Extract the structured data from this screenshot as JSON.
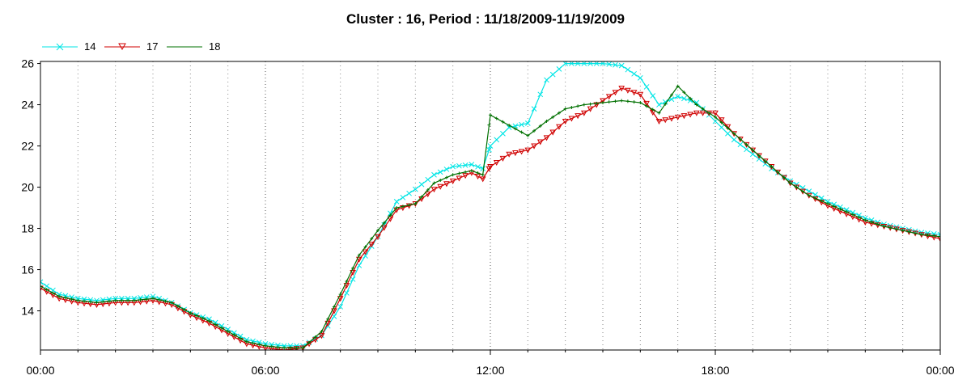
{
  "chart_data": {
    "type": "line",
    "title": "Cluster : 16, Period : 11/18/2009-11/19/2009",
    "xlabel": "",
    "ylabel": "",
    "x_tick_labels": [
      "00:00",
      "06:00",
      "12:00",
      "18:00",
      "00:00"
    ],
    "y_ticks": [
      14,
      16,
      18,
      20,
      22,
      24,
      26
    ],
    "ylim": [
      12.1,
      26.1
    ],
    "xlim_hours": [
      0,
      24
    ],
    "grid": "dotted vertical",
    "legend_position": "top-left",
    "x_hours": [
      0,
      0.5,
      1,
      1.5,
      2,
      2.5,
      3,
      3.5,
      4,
      4.5,
      5,
      5.5,
      6,
      6.5,
      7,
      7.5,
      8,
      8.5,
      9,
      9.5,
      10,
      10.5,
      11,
      11.5,
      11.8,
      12,
      12.5,
      13,
      13.5,
      14,
      14.5,
      15,
      15.5,
      16,
      16.5,
      17,
      17.5,
      18,
      18.5,
      19,
      19.5,
      20,
      20.5,
      21,
      21.5,
      22,
      22.5,
      23,
      23.5,
      24
    ],
    "series": [
      {
        "name": "14",
        "color": "#00e5e5",
        "marker": "x",
        "values": [
          15.4,
          14.8,
          14.6,
          14.5,
          14.6,
          14.6,
          14.7,
          14.4,
          13.9,
          13.6,
          13.1,
          12.6,
          12.4,
          12.3,
          12.3,
          12.8,
          14.2,
          16.2,
          17.6,
          19.3,
          19.9,
          20.6,
          21.0,
          21.1,
          20.9,
          22.0,
          22.9,
          23.1,
          25.2,
          26.0,
          26.0,
          26.0,
          25.9,
          25.3,
          24.0,
          24.4,
          24.1,
          23.2,
          22.3,
          21.6,
          20.9,
          20.3,
          19.8,
          19.3,
          18.9,
          18.5,
          18.2,
          18.0,
          17.8,
          17.7
        ]
      },
      {
        "name": "17",
        "color": "#d00000",
        "marker": "triangle-down",
        "values": [
          15.1,
          14.6,
          14.4,
          14.3,
          14.4,
          14.4,
          14.5,
          14.3,
          13.8,
          13.4,
          12.9,
          12.4,
          12.2,
          12.1,
          12.2,
          12.8,
          14.6,
          16.5,
          17.6,
          18.9,
          19.2,
          19.9,
          20.3,
          20.7,
          20.4,
          21.0,
          21.6,
          21.8,
          22.4,
          23.2,
          23.6,
          24.2,
          24.8,
          24.5,
          23.2,
          23.4,
          23.6,
          23.6,
          22.6,
          21.8,
          21.0,
          20.2,
          19.6,
          19.1,
          18.7,
          18.3,
          18.1,
          17.9,
          17.7,
          17.5
        ]
      },
      {
        "name": "18",
        "color": "#007000",
        "marker": "plus",
        "values": [
          15.2,
          14.7,
          14.5,
          14.4,
          14.5,
          14.5,
          14.6,
          14.4,
          13.9,
          13.5,
          13.0,
          12.5,
          12.3,
          12.2,
          12.2,
          13.0,
          14.8,
          16.7,
          17.9,
          19.0,
          19.2,
          20.2,
          20.6,
          20.8,
          20.6,
          23.5,
          23.0,
          22.5,
          23.2,
          23.8,
          24.0,
          24.1,
          24.2,
          24.1,
          23.6,
          24.9,
          24.0,
          23.4,
          22.6,
          21.8,
          21.0,
          20.2,
          19.6,
          19.2,
          18.8,
          18.4,
          18.1,
          17.9,
          17.7,
          17.6
        ]
      }
    ]
  }
}
